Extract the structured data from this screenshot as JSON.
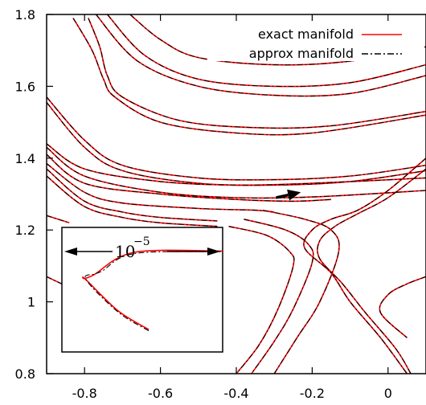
{
  "chart_data": {
    "type": "line",
    "title": "",
    "xlabel": "",
    "ylabel": "",
    "xlim": [
      -0.9,
      0.1
    ],
    "ylim": [
      0.8,
      1.8
    ],
    "grid": false,
    "legend_placement": "top-right",
    "x_ticks": [
      "-0.8",
      "-0.6",
      "-0.4",
      "-0.2",
      "0"
    ],
    "x_tick_values": [
      -0.8,
      -0.6,
      -0.4,
      -0.2,
      0.0
    ],
    "y_ticks": [
      "0.8",
      "1",
      "1.2",
      "1.4",
      "1.6",
      "1.8"
    ],
    "y_tick_values": [
      0.8,
      1.0,
      1.2,
      1.4,
      1.6,
      1.8
    ],
    "series": [
      {
        "name": "exact manifold",
        "color": "#ff0000",
        "style": "solid"
      },
      {
        "name": "approx manifold",
        "color": "#000000",
        "style": "dash-dot"
      }
    ],
    "curves": [
      [
        [
          -0.9,
          1.57
        ],
        [
          -0.8,
          1.45
        ],
        [
          -0.7,
          1.38
        ],
        [
          -0.5,
          1.345
        ],
        [
          -0.3,
          1.34
        ],
        [
          -0.1,
          1.35
        ],
        [
          0.1,
          1.38
        ]
      ],
      [
        [
          -0.9,
          1.555
        ],
        [
          -0.8,
          1.43
        ],
        [
          -0.7,
          1.365
        ],
        [
          -0.5,
          1.33
        ],
        [
          -0.3,
          1.325
        ],
        [
          -0.1,
          1.335
        ],
        [
          0.1,
          1.365
        ]
      ],
      [
        [
          -0.9,
          1.44
        ],
        [
          -0.8,
          1.37
        ],
        [
          -0.6,
          1.335
        ],
        [
          -0.4,
          1.325
        ],
        [
          -0.2,
          1.33
        ],
        [
          0.1,
          1.345
        ]
      ],
      [
        [
          -0.9,
          1.43
        ],
        [
          -0.8,
          1.35
        ],
        [
          -0.6,
          1.305
        ],
        [
          -0.4,
          1.29
        ],
        [
          -0.2,
          1.292
        ],
        [
          0.1,
          1.31
        ]
      ],
      [
        [
          -0.9,
          1.41
        ],
        [
          -0.8,
          1.33
        ],
        [
          -0.6,
          1.3
        ],
        [
          -0.4,
          1.285
        ],
        [
          -0.25,
          1.28
        ],
        [
          -0.15,
          1.285
        ]
      ],
      [
        [
          -0.9,
          1.385
        ],
        [
          -0.8,
          1.305
        ],
        [
          -0.7,
          1.275
        ],
        [
          -0.5,
          1.26
        ],
        [
          -0.35,
          1.255
        ],
        [
          -0.3,
          1.25
        ]
      ],
      [
        [
          -0.9,
          1.37
        ],
        [
          -0.8,
          1.28
        ],
        [
          -0.7,
          1.25
        ],
        [
          -0.6,
          1.235
        ],
        [
          -0.45,
          1.225
        ]
      ],
      [
        [
          -0.9,
          1.35
        ],
        [
          -0.8,
          1.265
        ],
        [
          -0.7,
          1.235
        ],
        [
          -0.6,
          1.22
        ],
        [
          -0.45,
          1.21
        ]
      ],
      [
        [
          -0.83,
          1.79
        ],
        [
          -0.78,
          1.7
        ],
        [
          -0.75,
          1.62
        ],
        [
          -0.72,
          1.57
        ],
        [
          -0.6,
          1.5
        ],
        [
          -0.4,
          1.47
        ],
        [
          -0.2,
          1.47
        ],
        [
          0.1,
          1.52
        ]
      ],
      [
        [
          -0.79,
          1.79
        ],
        [
          -0.76,
          1.71
        ],
        [
          -0.74,
          1.63
        ],
        [
          -0.7,
          1.57
        ],
        [
          -0.55,
          1.505
        ],
        [
          -0.35,
          1.485
        ],
        [
          -0.15,
          1.49
        ],
        [
          0.1,
          1.53
        ]
      ],
      [
        [
          -0.77,
          1.8
        ],
        [
          -0.66,
          1.67
        ],
        [
          -0.5,
          1.6
        ],
        [
          -0.3,
          1.575
        ],
        [
          -0.1,
          1.58
        ],
        [
          0.1,
          1.63
        ]
      ],
      [
        [
          -0.74,
          1.8
        ],
        [
          -0.64,
          1.685
        ],
        [
          -0.5,
          1.62
        ],
        [
          -0.3,
          1.6
        ],
        [
          -0.1,
          1.61
        ],
        [
          0.1,
          1.66
        ]
      ],
      [
        [
          -0.68,
          1.8
        ],
        [
          -0.6,
          1.73
        ],
        [
          -0.5,
          1.68
        ],
        [
          -0.3,
          1.66
        ],
        [
          -0.1,
          1.67
        ],
        [
          0.1,
          1.71
        ]
      ],
      [
        [
          0.1,
          1.4
        ],
        [
          0.0,
          1.31
        ],
        [
          -0.08,
          1.255
        ],
        [
          -0.15,
          1.23
        ],
        [
          -0.2,
          1.2
        ],
        [
          -0.22,
          1.15
        ],
        [
          -0.15,
          1.08
        ],
        [
          -0.1,
          1.0
        ],
        [
          -0.02,
          0.9
        ],
        [
          0.05,
          0.8
        ]
      ],
      [
        [
          0.1,
          1.37
        ],
        [
          0.0,
          1.29
        ],
        [
          -0.08,
          1.245
        ],
        [
          -0.14,
          1.21
        ],
        [
          -0.18,
          1.17
        ],
        [
          -0.18,
          1.12
        ],
        [
          -0.12,
          1.05
        ],
        [
          -0.06,
          0.97
        ],
        [
          0.02,
          0.87
        ],
        [
          0.06,
          0.8
        ]
      ],
      [
        [
          -0.33,
          1.255
        ],
        [
          -0.22,
          1.23
        ],
        [
          -0.15,
          1.2
        ],
        [
          -0.13,
          1.14
        ],
        [
          -0.18,
          1.0
        ],
        [
          -0.24,
          0.9
        ],
        [
          -0.3,
          0.8
        ]
      ],
      [
        [
          -0.38,
          1.23
        ],
        [
          -0.27,
          1.2
        ],
        [
          -0.21,
          1.16
        ],
        [
          -0.2,
          1.11
        ],
        [
          -0.25,
          0.98
        ],
        [
          -0.3,
          0.89
        ],
        [
          -0.36,
          0.8
        ]
      ],
      [
        [
          -0.42,
          1.21
        ],
        [
          -0.32,
          1.185
        ],
        [
          -0.26,
          1.14
        ],
        [
          -0.25,
          1.1
        ],
        [
          -0.29,
          0.98
        ],
        [
          -0.34,
          0.88
        ],
        [
          -0.4,
          0.8
        ]
      ],
      [
        [
          -0.56,
          1.11
        ],
        [
          -0.5,
          1.085
        ],
        [
          -0.45,
          1.03
        ],
        [
          -0.45,
          0.98
        ],
        [
          -0.48,
          0.95
        ],
        [
          -0.52,
          0.94
        ]
      ],
      [
        [
          0.1,
          1.07
        ],
        [
          0.05,
          1.05
        ],
        [
          0.0,
          1.02
        ],
        [
          -0.02,
          0.97
        ],
        [
          0.05,
          0.9
        ]
      ],
      [
        [
          -0.9,
          1.24
        ],
        [
          -0.84,
          1.22
        ]
      ],
      [
        [
          -0.9,
          1.07
        ],
        [
          -0.86,
          1.05
        ]
      ]
    ],
    "arrow": {
      "from": [
        -0.295,
        1.29
      ],
      "to": [
        -0.23,
        1.305
      ]
    },
    "inset": {
      "annotation_base": "10",
      "annotation_exponent": "−5",
      "exact_curve": [
        [
          0.54,
          0.18
        ],
        [
          0.35,
          0.33
        ],
        [
          0.15,
          0.58
        ],
        [
          0.14,
          0.59
        ],
        [
          0.2,
          0.62
        ],
        [
          0.45,
          0.8
        ],
        [
          1.0,
          0.81
        ]
      ],
      "approx_curve": [
        [
          0.54,
          0.17
        ],
        [
          0.35,
          0.32
        ],
        [
          0.15,
          0.58
        ],
        [
          0.2,
          0.625
        ],
        [
          0.25,
          0.65
        ],
        [
          0.45,
          0.79
        ],
        [
          1.0,
          0.805
        ]
      ]
    }
  }
}
